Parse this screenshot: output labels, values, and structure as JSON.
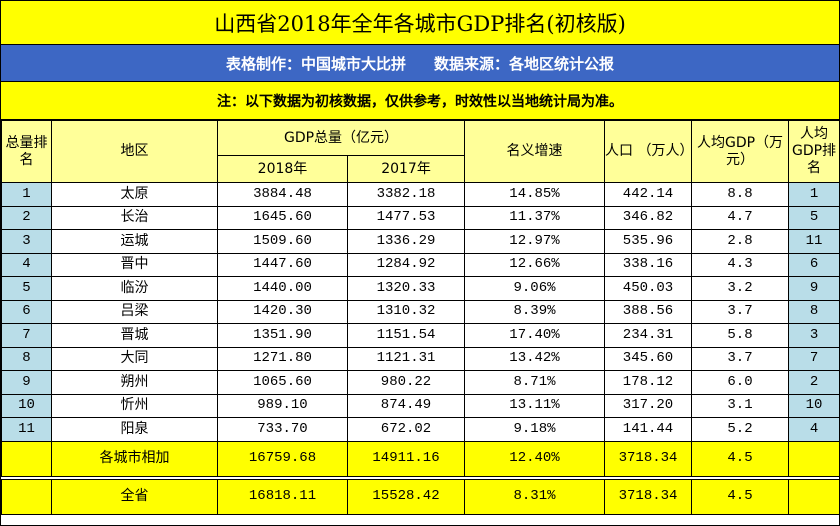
{
  "title": "山西省2018年全年各城市GDP排名(初核版)",
  "credits": {
    "maker": "表格制作：中国城市大比拼",
    "source": "数据来源：各地区统计公报"
  },
  "note": "注：以下数据为初核数据，仅供参考，时效性以当地统计局为准。",
  "headers": {
    "rank": "总量排名",
    "region": "地区",
    "gdp": "GDP总量（亿元）",
    "y2018": "2018年",
    "y2017": "2017年",
    "growth": "名义增速",
    "population": "人口 （万人）",
    "per_capita": "人均GDP（万元）",
    "per_capita_rank": "人均GDP排名"
  },
  "rows": [
    {
      "rank": "1",
      "region": "太原",
      "gdp2018": "3884.48",
      "gdp2017": "3382.18",
      "growth": "14.85%",
      "population": "442.14",
      "per_capita": "8.8",
      "pc_rank": "1"
    },
    {
      "rank": "2",
      "region": "长治",
      "gdp2018": "1645.60",
      "gdp2017": "1477.53",
      "growth": "11.37%",
      "population": "346.82",
      "per_capita": "4.7",
      "pc_rank": "5"
    },
    {
      "rank": "3",
      "region": "运城",
      "gdp2018": "1509.60",
      "gdp2017": "1336.29",
      "growth": "12.97%",
      "population": "535.96",
      "per_capita": "2.8",
      "pc_rank": "11"
    },
    {
      "rank": "4",
      "region": "晋中",
      "gdp2018": "1447.60",
      "gdp2017": "1284.92",
      "growth": "12.66%",
      "population": "338.16",
      "per_capita": "4.3",
      "pc_rank": "6"
    },
    {
      "rank": "5",
      "region": "临汾",
      "gdp2018": "1440.00",
      "gdp2017": "1320.33",
      "growth": "9.06%",
      "population": "450.03",
      "per_capita": "3.2",
      "pc_rank": "9"
    },
    {
      "rank": "6",
      "region": "吕梁",
      "gdp2018": "1420.30",
      "gdp2017": "1310.32",
      "growth": "8.39%",
      "population": "388.56",
      "per_capita": "3.7",
      "pc_rank": "8"
    },
    {
      "rank": "7",
      "region": "晋城",
      "gdp2018": "1351.90",
      "gdp2017": "1151.54",
      "growth": "17.40%",
      "population": "234.31",
      "per_capita": "5.8",
      "pc_rank": "3"
    },
    {
      "rank": "8",
      "region": "大同",
      "gdp2018": "1271.80",
      "gdp2017": "1121.31",
      "growth": "13.42%",
      "population": "345.60",
      "per_capita": "3.7",
      "pc_rank": "7"
    },
    {
      "rank": "9",
      "region": "朔州",
      "gdp2018": "1065.60",
      "gdp2017": "980.22",
      "growth": "8.71%",
      "population": "178.12",
      "per_capita": "6.0",
      "pc_rank": "2"
    },
    {
      "rank": "10",
      "region": "忻州",
      "gdp2018": "989.10",
      "gdp2017": "874.49",
      "growth": "13.11%",
      "population": "317.20",
      "per_capita": "3.1",
      "pc_rank": "10"
    },
    {
      "rank": "11",
      "region": "阳泉",
      "gdp2018": "733.70",
      "gdp2017": "672.02",
      "growth": "9.18%",
      "population": "141.44",
      "per_capita": "5.2",
      "pc_rank": "4"
    }
  ],
  "totals": [
    {
      "label": "各城市相加",
      "gdp2018": "16759.68",
      "gdp2017": "14911.16",
      "growth": "12.40%",
      "population": "3718.34",
      "per_capita": "4.5"
    },
    {
      "label": "全省",
      "gdp2018": "16818.11",
      "gdp2017": "15528.42",
      "growth": "8.31%",
      "population": "3718.34",
      "per_capita": "4.5"
    }
  ],
  "colors": {
    "title_bg": "#ffff00",
    "credit_bg": "#3d67c4",
    "header_bg": "#ffff99",
    "rank_bg": "#b9dde8"
  }
}
